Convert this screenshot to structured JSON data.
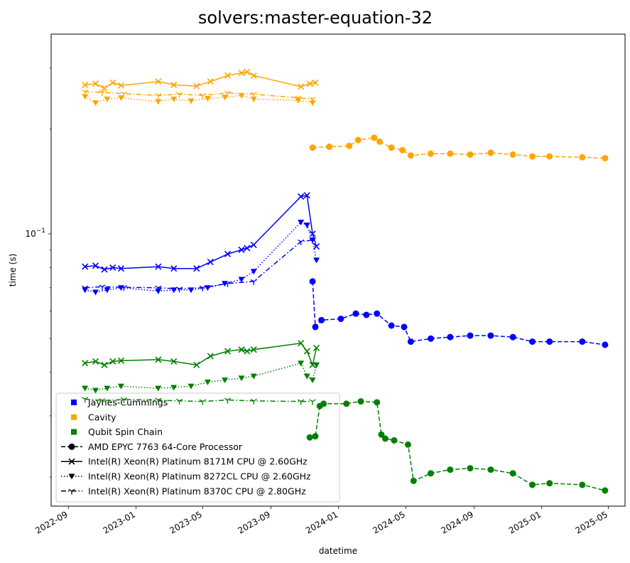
{
  "chart_data": {
    "type": "line",
    "title": "solvers:master-equation-32",
    "xlabel": "datetime",
    "ylabel": "time (s)",
    "yscale": "log",
    "xlim": [
      "2022-08-01",
      "2025-05-31"
    ],
    "ylim": [
      0.0165,
      0.375
    ],
    "grid": false,
    "legend_placement": "lower-left",
    "x_ticks": [
      "2022-09",
      "2023-01",
      "2023-05",
      "2023-09",
      "2024-01",
      "2024-05",
      "2024-09",
      "2025-01",
      "2025-05"
    ],
    "y_ticks": [
      {
        "value": 0.1,
        "base": "10",
        "exp": "−1"
      }
    ],
    "legend": {
      "colors": [
        {
          "name": "Jaynes-Cummings",
          "color": "#0000ff"
        },
        {
          "name": "Cavity",
          "color": "#ffa500"
        },
        {
          "name": "Qubit Spin Chain",
          "color": "#008000"
        }
      ],
      "processors": [
        {
          "name": "AMD EPYC 7763 64-Core Processor",
          "linestyle": "dashed",
          "marker": "circle"
        },
        {
          "name": "Intel(R) Xeon(R) Platinum 8171M CPU @ 2.60GHz",
          "linestyle": "solid",
          "marker": "x"
        },
        {
          "name": "Intel(R) Xeon(R) Platinum 8272CL CPU @ 2.60GHz",
          "linestyle": "dotted",
          "marker": "triangle-down"
        },
        {
          "name": "Intel(R) Xeon(R) Platinum 8370C CPU @ 2.80GHz",
          "linestyle": "dashdot",
          "marker": "tri-down"
        }
      ]
    },
    "series": [
      {
        "name": "Cavity",
        "processor": "Intel(R) Xeon(R) Platinum 8171M CPU @ 2.60GHz",
        "color": "#ffa500",
        "linestyle": "solid",
        "marker": "x",
        "x": [
          "2022-10-01",
          "2022-10-20",
          "2022-11-05",
          "2022-11-20",
          "2022-12-05",
          "2023-02-10",
          "2023-03-10",
          "2023-04-20",
          "2023-05-15",
          "2023-06-15",
          "2023-07-10",
          "2023-07-20",
          "2023-08-01",
          "2023-10-25",
          "2023-11-10",
          "2023-11-20"
        ],
        "y": [
          0.268,
          0.27,
          0.262,
          0.272,
          0.267,
          0.274,
          0.268,
          0.266,
          0.274,
          0.285,
          0.29,
          0.292,
          0.285,
          0.265,
          0.27,
          0.272
        ]
      },
      {
        "name": "Cavity",
        "processor": "Intel(R) Xeon(R) Platinum 8272CL CPU @ 2.60GHz",
        "color": "#ffa500",
        "linestyle": "dotted",
        "marker": "triangle-down",
        "x": [
          "2022-10-01",
          "2022-10-20",
          "2022-11-10",
          "2022-12-05",
          "2023-02-10",
          "2023-03-10",
          "2023-04-10",
          "2023-05-10",
          "2023-06-10",
          "2023-07-10",
          "2023-08-01",
          "2023-10-20",
          "2023-11-15"
        ],
        "y": [
          0.248,
          0.238,
          0.244,
          0.246,
          0.24,
          0.244,
          0.241,
          0.245,
          0.247,
          0.25,
          0.244,
          0.242,
          0.238
        ]
      },
      {
        "name": "Cavity",
        "processor": "Intel(R) Xeon(R) Platinum 8370C CPU @ 2.80GHz",
        "color": "#ffa500",
        "linestyle": "dashdot",
        "marker": "tri-down",
        "x": [
          "2022-10-01",
          "2022-11-01",
          "2022-12-10",
          "2023-02-10",
          "2023-03-20",
          "2023-05-01",
          "2023-06-15",
          "2023-08-01",
          "2023-10-20",
          "2023-11-15"
        ],
        "y": [
          0.256,
          0.255,
          0.253,
          0.25,
          0.252,
          0.25,
          0.254,
          0.252,
          0.246,
          0.244
        ]
      },
      {
        "name": "Cavity",
        "processor": "AMD EPYC 7763 64-Core Processor",
        "color": "#ffa500",
        "linestyle": "dashed",
        "marker": "circle",
        "x": [
          "2023-11-15",
          "2023-12-15",
          "2024-01-20",
          "2024-02-05",
          "2024-03-05",
          "2024-03-15",
          "2024-04-05",
          "2024-04-25",
          "2024-05-10",
          "2024-06-15",
          "2024-07-20",
          "2024-08-25",
          "2024-10-01",
          "2024-11-10",
          "2024-12-15",
          "2025-01-15",
          "2025-03-15",
          "2025-04-25"
        ],
        "y": [
          0.177,
          0.178,
          0.179,
          0.186,
          0.189,
          0.184,
          0.177,
          0.174,
          0.168,
          0.17,
          0.17,
          0.169,
          0.171,
          0.169,
          0.167,
          0.167,
          0.166,
          0.165
        ]
      },
      {
        "name": "Jaynes-Cummings",
        "processor": "Intel(R) Xeon(R) Platinum 8171M CPU @ 2.60GHz",
        "color": "#0000ff",
        "linestyle": "solid",
        "marker": "x",
        "x": [
          "2022-10-01",
          "2022-10-20",
          "2022-11-05",
          "2022-11-20",
          "2022-12-05",
          "2023-02-10",
          "2023-03-10",
          "2023-04-20",
          "2023-05-15",
          "2023-06-15",
          "2023-07-10",
          "2023-07-20",
          "2023-08-01",
          "2023-10-25",
          "2023-11-05",
          "2023-11-15",
          "2023-11-22"
        ],
        "y": [
          0.0805,
          0.081,
          0.079,
          0.08,
          0.0795,
          0.0805,
          0.0795,
          0.0795,
          0.083,
          0.0875,
          0.09,
          0.091,
          0.093,
          0.128,
          0.129,
          0.1,
          0.092
        ]
      },
      {
        "name": "Jaynes-Cummings",
        "processor": "Intel(R) Xeon(R) Platinum 8272CL CPU @ 2.60GHz",
        "color": "#0000ff",
        "linestyle": "dotted",
        "marker": "triangle-down",
        "x": [
          "2022-10-01",
          "2022-10-20",
          "2022-11-10",
          "2022-12-05",
          "2023-02-10",
          "2023-03-10",
          "2023-04-10",
          "2023-05-10",
          "2023-06-10",
          "2023-07-10",
          "2023-08-01",
          "2023-10-25",
          "2023-11-05",
          "2023-11-15",
          "2023-11-22"
        ],
        "y": [
          0.069,
          0.068,
          0.069,
          0.07,
          0.0685,
          0.069,
          0.069,
          0.07,
          0.072,
          0.074,
          0.078,
          0.108,
          0.106,
          0.096,
          0.084
        ]
      },
      {
        "name": "Jaynes-Cummings",
        "processor": "Intel(R) Xeon(R) Platinum 8370C CPU @ 2.80GHz",
        "color": "#0000ff",
        "linestyle": "dashdot",
        "marker": "tri-down",
        "x": [
          "2022-10-01",
          "2022-11-01",
          "2022-12-10",
          "2023-02-10",
          "2023-03-20",
          "2023-05-01",
          "2023-06-15",
          "2023-08-01",
          "2023-10-25",
          "2023-11-15"
        ],
        "y": [
          0.07,
          0.0705,
          0.0702,
          0.07,
          0.0695,
          0.07,
          0.072,
          0.073,
          0.095,
          0.096
        ]
      },
      {
        "name": "Jaynes-Cummings",
        "processor": "AMD EPYC 7763 64-Core Processor",
        "color": "#0000ff",
        "linestyle": "dashed",
        "marker": "circle",
        "x": [
          "2023-11-15",
          "2023-11-20",
          "2023-12-01",
          "2024-01-05",
          "2024-02-01",
          "2024-02-20",
          "2024-03-10",
          "2024-04-05",
          "2024-04-28",
          "2024-05-10",
          "2024-06-15",
          "2024-07-20",
          "2024-08-25",
          "2024-10-01",
          "2024-11-10",
          "2024-12-15",
          "2025-01-15",
          "2025-03-15",
          "2025-04-25"
        ],
        "y": [
          0.073,
          0.054,
          0.0565,
          0.057,
          0.059,
          0.0585,
          0.059,
          0.0545,
          0.054,
          0.049,
          0.05,
          0.0505,
          0.051,
          0.051,
          0.0505,
          0.049,
          0.049,
          0.049,
          0.048
        ]
      },
      {
        "name": "Qubit Spin Chain",
        "processor": "Intel(R) Xeon(R) Platinum 8171M CPU @ 2.60GHz",
        "color": "#008000",
        "linestyle": "solid",
        "marker": "x",
        "x": [
          "2022-10-01",
          "2022-10-20",
          "2022-11-05",
          "2022-11-20",
          "2022-12-05",
          "2023-02-10",
          "2023-03-10",
          "2023-04-20",
          "2023-05-15",
          "2023-06-15",
          "2023-07-10",
          "2023-07-20",
          "2023-08-01",
          "2023-10-25",
          "2023-11-05",
          "2023-11-15",
          "2023-11-22"
        ],
        "y": [
          0.0425,
          0.043,
          0.042,
          0.043,
          0.0432,
          0.0435,
          0.043,
          0.042,
          0.0445,
          0.046,
          0.0465,
          0.046,
          0.0465,
          0.0485,
          0.046,
          0.042,
          0.047
        ]
      },
      {
        "name": "Qubit Spin Chain",
        "processor": "Intel(R) Xeon(R) Platinum 8272CL CPU @ 2.60GHz",
        "color": "#008000",
        "linestyle": "dotted",
        "marker": "triangle-down",
        "x": [
          "2022-10-01",
          "2022-10-20",
          "2022-11-10",
          "2022-12-05",
          "2023-02-10",
          "2023-03-10",
          "2023-04-10",
          "2023-05-10",
          "2023-06-10",
          "2023-07-10",
          "2023-08-01",
          "2023-10-25",
          "2023-11-05",
          "2023-11-15",
          "2023-11-22"
        ],
        "y": [
          0.036,
          0.0355,
          0.036,
          0.0365,
          0.036,
          0.0362,
          0.0365,
          0.0375,
          0.038,
          0.0385,
          0.039,
          0.0425,
          0.039,
          0.038,
          0.042
        ]
      },
      {
        "name": "Qubit Spin Chain",
        "processor": "Intel(R) Xeon(R) Platinum 8370C CPU @ 2.80GHz",
        "color": "#008000",
        "linestyle": "dashdot",
        "marker": "tri-down",
        "x": [
          "2022-10-01",
          "2022-11-01",
          "2022-12-10",
          "2023-02-10",
          "2023-03-20",
          "2023-05-01",
          "2023-06-15",
          "2023-08-01",
          "2023-10-25",
          "2023-11-15"
        ],
        "y": [
          0.0335,
          0.0332,
          0.0334,
          0.0333,
          0.0331,
          0.033,
          0.0333,
          0.0331,
          0.033,
          0.033
        ]
      },
      {
        "name": "Qubit Spin Chain",
        "processor": "AMD EPYC 7763 64-Core Processor",
        "color": "#008000",
        "linestyle": "dashed",
        "marker": "circle",
        "x": [
          "2023-11-10",
          "2023-11-20",
          "2023-11-28",
          "2023-12-05",
          "2024-01-15",
          "2024-02-10",
          "2024-03-10",
          "2024-03-18",
          "2024-03-25",
          "2024-04-10",
          "2024-05-05",
          "2024-05-15",
          "2024-06-15",
          "2024-07-20",
          "2024-08-25",
          "2024-10-01",
          "2024-11-10",
          "2024-12-15",
          "2025-01-15",
          "2025-03-15",
          "2025-04-25"
        ],
        "y": [
          0.026,
          0.0262,
          0.032,
          0.0325,
          0.0325,
          0.033,
          0.0328,
          0.0265,
          0.0258,
          0.0255,
          0.0248,
          0.0195,
          0.0205,
          0.021,
          0.0212,
          0.021,
          0.0205,
          0.019,
          0.0192,
          0.019,
          0.0183
        ]
      }
    ]
  }
}
